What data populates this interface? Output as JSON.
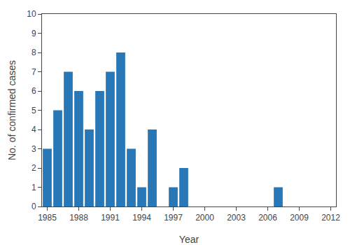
{
  "chart_data": {
    "type": "bar",
    "x": [
      1985,
      1986,
      1987,
      1988,
      1989,
      1990,
      1991,
      1992,
      1993,
      1994,
      1995,
      1996,
      1997,
      1998,
      1999,
      2000,
      2001,
      2002,
      2003,
      2004,
      2005,
      2006,
      2007,
      2008,
      2009,
      2010,
      2011,
      2012
    ],
    "values": [
      3,
      5,
      7,
      6,
      4,
      6,
      7,
      8,
      3,
      1,
      4,
      0,
      1,
      2,
      0,
      0,
      0,
      0,
      0,
      0,
      0,
      0,
      1,
      0,
      0,
      0,
      0,
      0
    ],
    "color": "#2878b8",
    "xlabel": "Year",
    "ylabel": "No. of confirmed cases",
    "xlim": [
      1984.5,
      2012.5
    ],
    "xticks": [
      1985,
      1988,
      1991,
      1994,
      1997,
      2000,
      2003,
      2006,
      2009,
      2012
    ],
    "ylim": [
      0,
      10
    ],
    "yticks": [
      0,
      1,
      2,
      3,
      4,
      5,
      6,
      7,
      8,
      9,
      10
    ],
    "grid": false
  }
}
